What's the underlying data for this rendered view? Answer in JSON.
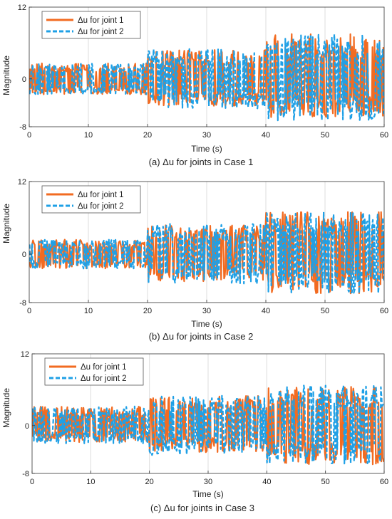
{
  "chart_data": [
    {
      "type": "line",
      "caption": "(a)  Δu for joints in Case 1",
      "xlabel": "Time (s)",
      "ylabel": "Magnitude",
      "xlim": [
        0,
        60
      ],
      "ylim": [
        -8,
        12
      ],
      "xticks": [
        "0",
        "10",
        "20",
        "30",
        "40",
        "50",
        "60"
      ],
      "yticks": [
        "-8",
        "0",
        "12"
      ],
      "grid": "vertical",
      "legend_position": "top-left",
      "series": [
        {
          "name": "Δu for joint 1",
          "color": "#f26b21",
          "style": "solid",
          "segments": [
            {
              "t0": 0,
              "t1": 20,
              "min": -2.6,
              "max": 2.6
            },
            {
              "t0": 20,
              "t1": 40,
              "min": -4.5,
              "max": 5.0
            },
            {
              "t0": 40,
              "t1": 60,
              "min": -6.5,
              "max": 7.5
            }
          ]
        },
        {
          "name": "Δu for joint 2",
          "color": "#1fa0e6",
          "style": "dashed",
          "segments": [
            {
              "t0": 0,
              "t1": 20,
              "min": -2.6,
              "max": 2.6
            },
            {
              "t0": 20,
              "t1": 40,
              "min": -5.0,
              "max": 5.0
            },
            {
              "t0": 40,
              "t1": 60,
              "min": -7.0,
              "max": 7.5
            }
          ]
        }
      ]
    },
    {
      "type": "line",
      "caption": "(b)  Δu for joints in Case 2",
      "xlabel": "Time (s)",
      "ylabel": "Magnitude",
      "xlim": [
        0,
        60
      ],
      "ylim": [
        -8,
        12
      ],
      "xticks": [
        "0",
        "10",
        "20",
        "30",
        "40",
        "50",
        "60"
      ],
      "yticks": [
        "-8",
        "0",
        "12"
      ],
      "grid": "vertical",
      "legend_position": "top-left",
      "series": [
        {
          "name": "Δu for joint 1",
          "color": "#f26b21",
          "style": "solid",
          "segments": [
            {
              "t0": 0,
              "t1": 20,
              "min": -2.4,
              "max": 2.4
            },
            {
              "t0": 20,
              "t1": 40,
              "min": -4.5,
              "max": 4.8
            },
            {
              "t0": 40,
              "t1": 60,
              "min": -6.5,
              "max": 7.0
            }
          ]
        },
        {
          "name": "Δu for joint 2",
          "color": "#1fa0e6",
          "style": "dashed",
          "segments": [
            {
              "t0": 0,
              "t1": 20,
              "min": -2.4,
              "max": 2.4
            },
            {
              "t0": 20,
              "t1": 40,
              "min": -5.0,
              "max": 5.0
            },
            {
              "t0": 40,
              "t1": 60,
              "min": -6.5,
              "max": 7.0
            }
          ]
        }
      ]
    },
    {
      "type": "line",
      "caption": "(c)  Δu for joints in Case 3",
      "xlabel": "Time (s)",
      "ylabel": "Magnitude",
      "xlim": [
        0,
        60
      ],
      "ylim": [
        -8,
        12
      ],
      "xticks": [
        "0",
        "10",
        "20",
        "30",
        "40",
        "50",
        "60"
      ],
      "yticks": [
        "-8",
        "0",
        "12"
      ],
      "grid": "vertical",
      "legend_position": "top-left",
      "series": [
        {
          "name": "Δu for joint 1",
          "color": "#f26b21",
          "style": "solid",
          "segments": [
            {
              "t0": 0,
              "t1": 20,
              "min": -2.8,
              "max": 3.2
            },
            {
              "t0": 20,
              "t1": 40,
              "min": -4.5,
              "max": 5.0
            },
            {
              "t0": 40,
              "t1": 60,
              "min": -6.5,
              "max": 6.5
            }
          ]
        },
        {
          "name": "Δu for joint 2",
          "color": "#1fa0e6",
          "style": "dashed",
          "segments": [
            {
              "t0": 0,
              "t1": 20,
              "min": -3.0,
              "max": 3.2
            },
            {
              "t0": 20,
              "t1": 40,
              "min": -5.0,
              "max": 5.0
            },
            {
              "t0": 40,
              "t1": 60,
              "min": -6.5,
              "max": 6.8
            }
          ]
        }
      ]
    }
  ]
}
